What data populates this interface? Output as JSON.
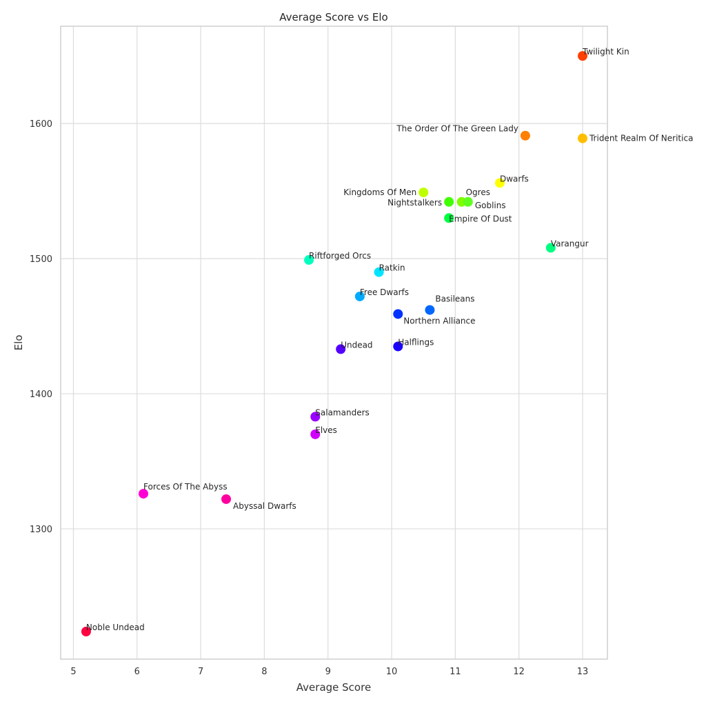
{
  "chart_data": {
    "type": "scatter",
    "title": "Average Score vs Elo",
    "xlabel": "Average Score",
    "ylabel": "Elo",
    "xlim": [
      4.8,
      13.39
    ],
    "ylim": [
      1203.6,
      1672
    ],
    "xticks": [
      "5",
      "6",
      "7",
      "8",
      "9",
      "10",
      "11",
      "12",
      "13"
    ],
    "yticks": [
      "1300",
      "1400",
      "1500",
      "1600"
    ],
    "grid": true,
    "points": [
      {
        "label": "Twilight Kin",
        "x": 13.0,
        "y": 1650,
        "color": "#ff4000"
      },
      {
        "label": "The Order Of The Green Lady",
        "x": 12.1,
        "y": 1591,
        "color": "#ff8000"
      },
      {
        "label": "Trident Realm Of Neritica",
        "x": 13.0,
        "y": 1589,
        "color": "#ffbf00"
      },
      {
        "label": "Dwarfs",
        "x": 11.7,
        "y": 1556,
        "color": "#ffff00"
      },
      {
        "label": "Kingdoms Of Men",
        "x": 10.5,
        "y": 1549,
        "color": "#bfff00"
      },
      {
        "label": "Nightstalkers",
        "x": 10.9,
        "y": 1542,
        "color": "#40ff00"
      },
      {
        "label": "Ogres",
        "x": 11.1,
        "y": 1542,
        "color": "#80ff00"
      },
      {
        "label": "Goblins",
        "x": 11.2,
        "y": 1542,
        "color": "#60ff20"
      },
      {
        "label": "Empire Of Dust",
        "x": 10.9,
        "y": 1530,
        "color": "#00ff40"
      },
      {
        "label": "Varangur",
        "x": 12.5,
        "y": 1508,
        "color": "#00ff80"
      },
      {
        "label": "Riftforged Orcs",
        "x": 8.7,
        "y": 1499,
        "color": "#00ffbf"
      },
      {
        "label": "Ratkin",
        "x": 9.8,
        "y": 1490,
        "color": "#00e5ff"
      },
      {
        "label": "Free Dwarfs",
        "x": 9.5,
        "y": 1472,
        "color": "#00aaff"
      },
      {
        "label": "Basileans",
        "x": 10.6,
        "y": 1462,
        "color": "#0066ff"
      },
      {
        "label": "Northern Alliance",
        "x": 10.1,
        "y": 1459,
        "color": "#0033ff"
      },
      {
        "label": "Halflings",
        "x": 10.1,
        "y": 1435,
        "color": "#1a00ff"
      },
      {
        "label": "Undead",
        "x": 9.2,
        "y": 1433,
        "color": "#5500ff"
      },
      {
        "label": "Salamanders",
        "x": 8.8,
        "y": 1383,
        "color": "#9900ff"
      },
      {
        "label": "Elves",
        "x": 8.8,
        "y": 1370,
        "color": "#d400ff"
      },
      {
        "label": "Forces Of The Abyss",
        "x": 6.1,
        "y": 1326,
        "color": "#ff00d4"
      },
      {
        "label": "Abyssal Dwarfs",
        "x": 7.4,
        "y": 1322,
        "color": "#ff00a0"
      },
      {
        "label": "Noble Undead",
        "x": 5.2,
        "y": 1224,
        "color": "#ff0040"
      }
    ]
  }
}
